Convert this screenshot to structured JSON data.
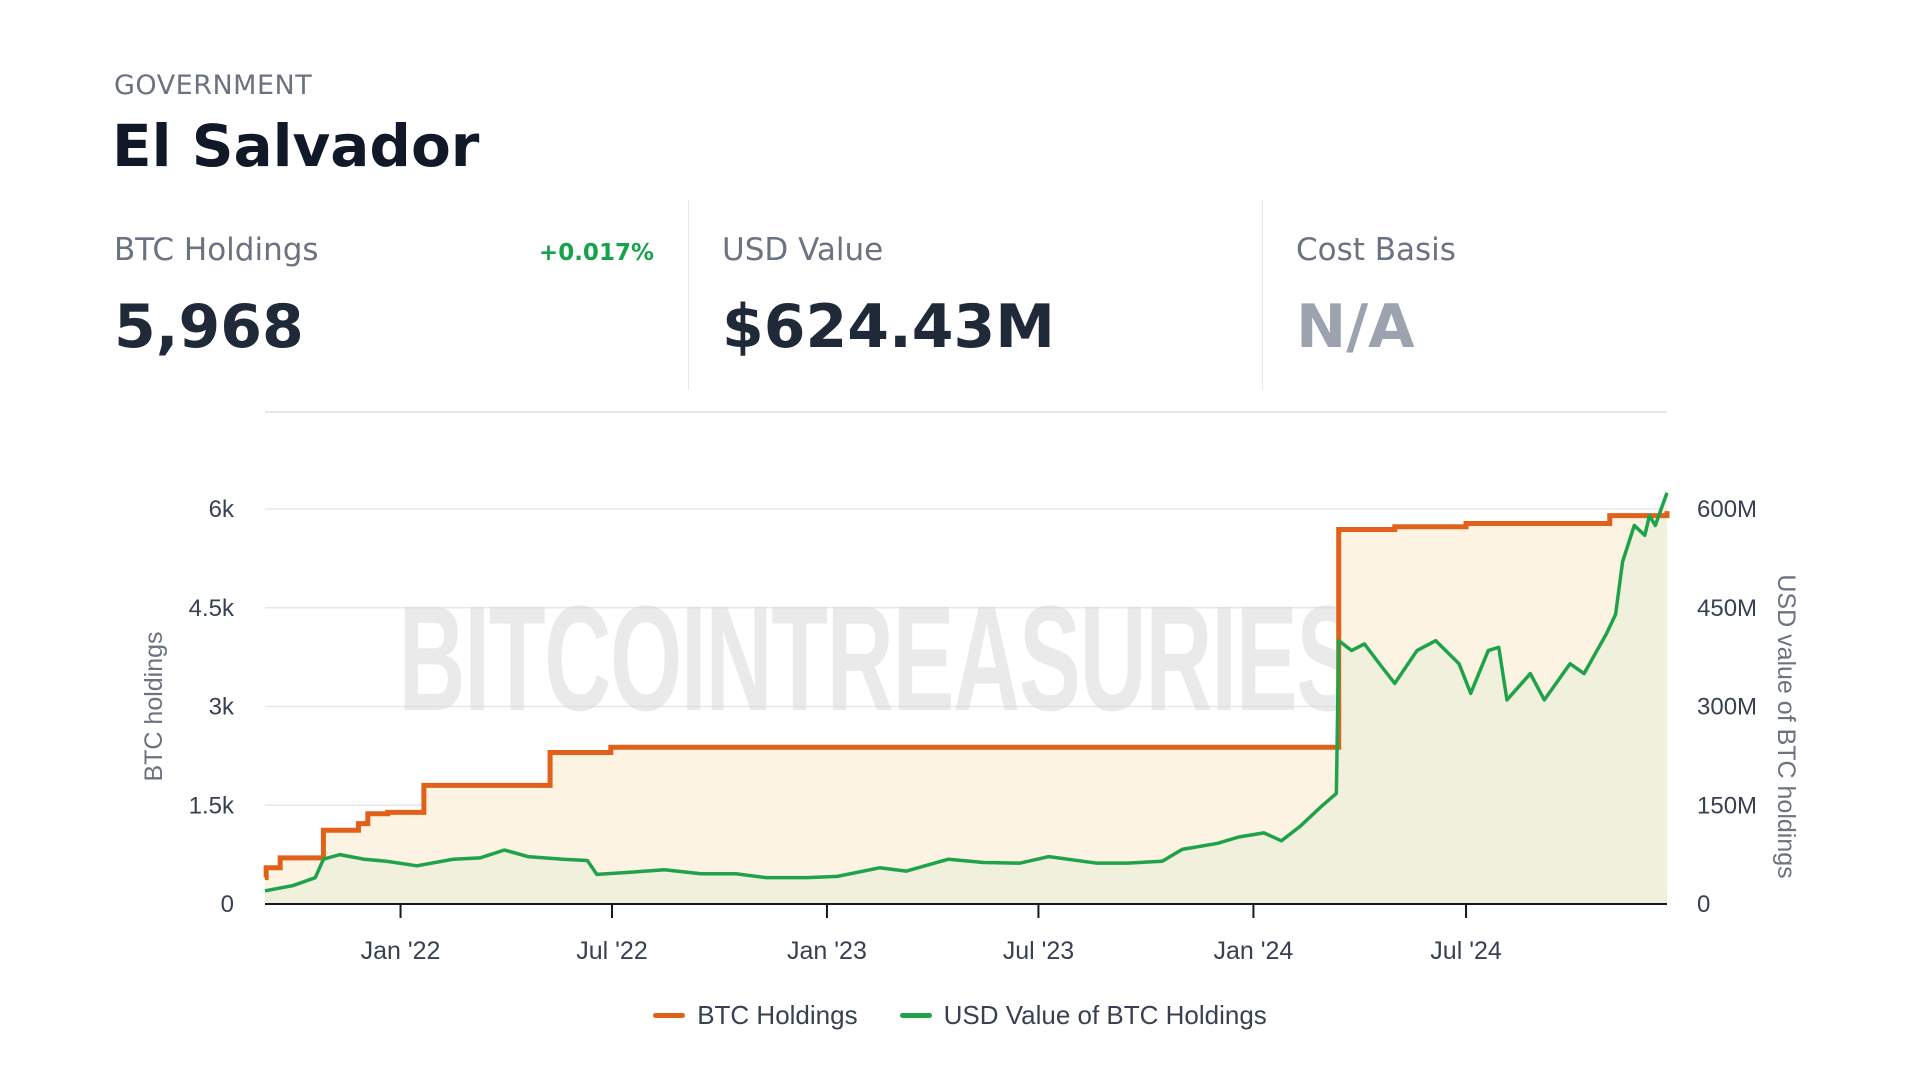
{
  "header": {
    "category": "GOVERNMENT",
    "entity": "El Salvador"
  },
  "stats": {
    "btc_holdings": {
      "label": "BTC Holdings",
      "value": "5,968",
      "change": "+0.017%"
    },
    "usd_value": {
      "label": "USD Value",
      "value": "$624.43M"
    },
    "cost_basis": {
      "label": "Cost Basis",
      "value": "N/A"
    }
  },
  "watermark": "BITCOINTREASURIES.NET",
  "colors": {
    "btc": "#e2611a",
    "usd": "#1fa34a",
    "btc_fill": "#fdf3e2",
    "usd_fill": "#eff0dd",
    "change_positive": "#16a34a"
  },
  "chart_data": {
    "type": "line",
    "x_type": "date",
    "x_range": [
      "2021-09-07",
      "2024-12-20"
    ],
    "x_ticks": [
      {
        "date": "2022-01-01",
        "label": "Jan '22"
      },
      {
        "date": "2022-07-01",
        "label": "Jul '22"
      },
      {
        "date": "2023-01-01",
        "label": "Jan '23"
      },
      {
        "date": "2023-07-01",
        "label": "Jul '23"
      },
      {
        "date": "2024-01-01",
        "label": "Jan '24"
      },
      {
        "date": "2024-07-01",
        "label": "Jul '24"
      }
    ],
    "y_left": {
      "label": "BTC holdings",
      "ylim": [
        0,
        6000
      ],
      "ticks": [
        {
          "value": 0,
          "label": "0"
        },
        {
          "value": 1500,
          "label": "1.5k"
        },
        {
          "value": 3000,
          "label": "3k"
        },
        {
          "value": 4500,
          "label": "4.5k"
        },
        {
          "value": 6000,
          "label": "6k"
        }
      ]
    },
    "y_right": {
      "label": "USD value of BTC holdings",
      "ylim": [
        0,
        600000000
      ],
      "ticks": [
        {
          "value": 0,
          "label": "0"
        },
        {
          "value": 150000000,
          "label": "150M"
        },
        {
          "value": 300000000,
          "label": "300M"
        },
        {
          "value": 450000000,
          "label": "450M"
        },
        {
          "value": 600000000,
          "label": "600M"
        }
      ]
    },
    "grid": true,
    "legend_position": "bottom-center",
    "series": [
      {
        "name": "BTC Holdings",
        "axis": "left",
        "step": true,
        "points": [
          [
            "2021-09-07",
            400
          ],
          [
            "2021-09-08",
            550
          ],
          [
            "2021-09-20",
            700
          ],
          [
            "2021-10-27",
            1120
          ],
          [
            "2021-11-26",
            1220
          ],
          [
            "2021-12-04",
            1370
          ],
          [
            "2021-12-21",
            1391
          ],
          [
            "2022-01-21",
            1801
          ],
          [
            "2022-05-09",
            2301
          ],
          [
            "2022-06-30",
            2381
          ],
          [
            "2022-07-01",
            2381
          ],
          [
            "2024-03-14",
            5689
          ],
          [
            "2024-05-01",
            5730
          ],
          [
            "2024-07-01",
            5780
          ],
          [
            "2024-11-01",
            5900
          ],
          [
            "2024-12-20",
            5968
          ]
        ]
      },
      {
        "name": "USD Value of BTC Holdings",
        "axis": "right",
        "step": false,
        "points": [
          [
            "2021-09-07",
            20000000
          ],
          [
            "2021-10-01",
            28000000
          ],
          [
            "2021-10-20",
            40000000
          ],
          [
            "2021-10-27",
            68000000
          ],
          [
            "2021-11-10",
            75000000
          ],
          [
            "2021-12-01",
            68000000
          ],
          [
            "2021-12-20",
            65000000
          ],
          [
            "2022-01-15",
            58000000
          ],
          [
            "2022-02-15",
            68000000
          ],
          [
            "2022-03-10",
            70000000
          ],
          [
            "2022-03-31",
            82000000
          ],
          [
            "2022-04-20",
            72000000
          ],
          [
            "2022-05-20",
            68000000
          ],
          [
            "2022-06-10",
            66000000
          ],
          [
            "2022-06-18",
            45000000
          ],
          [
            "2022-07-15",
            48000000
          ],
          [
            "2022-08-15",
            52000000
          ],
          [
            "2022-09-15",
            46000000
          ],
          [
            "2022-10-15",
            46000000
          ],
          [
            "2022-11-10",
            40000000
          ],
          [
            "2022-12-15",
            40000000
          ],
          [
            "2023-01-10",
            42000000
          ],
          [
            "2023-02-15",
            55000000
          ],
          [
            "2023-03-10",
            50000000
          ],
          [
            "2023-04-15",
            68000000
          ],
          [
            "2023-05-15",
            63000000
          ],
          [
            "2023-06-15",
            62000000
          ],
          [
            "2023-07-10",
            72000000
          ],
          [
            "2023-08-20",
            62000000
          ],
          [
            "2023-09-15",
            62000000
          ],
          [
            "2023-10-15",
            65000000
          ],
          [
            "2023-11-01",
            83000000
          ],
          [
            "2023-12-01",
            92000000
          ],
          [
            "2023-12-20",
            102000000
          ],
          [
            "2024-01-10",
            108000000
          ],
          [
            "2024-01-25",
            96000000
          ],
          [
            "2024-02-10",
            118000000
          ],
          [
            "2024-02-28",
            148000000
          ],
          [
            "2024-03-12",
            168000000
          ],
          [
            "2024-03-14",
            400000000
          ],
          [
            "2024-03-25",
            385000000
          ],
          [
            "2024-04-05",
            395000000
          ],
          [
            "2024-04-20",
            360000000
          ],
          [
            "2024-05-01",
            335000000
          ],
          [
            "2024-05-20",
            385000000
          ],
          [
            "2024-06-05",
            400000000
          ],
          [
            "2024-06-25",
            365000000
          ],
          [
            "2024-07-05",
            320000000
          ],
          [
            "2024-07-20",
            385000000
          ],
          [
            "2024-07-29",
            390000000
          ],
          [
            "2024-08-05",
            310000000
          ],
          [
            "2024-08-25",
            350000000
          ],
          [
            "2024-09-06",
            310000000
          ],
          [
            "2024-09-28",
            365000000
          ],
          [
            "2024-10-10",
            350000000
          ],
          [
            "2024-10-29",
            410000000
          ],
          [
            "2024-11-06",
            440000000
          ],
          [
            "2024-11-12",
            520000000
          ],
          [
            "2024-11-22",
            575000000
          ],
          [
            "2024-12-01",
            560000000
          ],
          [
            "2024-12-05",
            590000000
          ],
          [
            "2024-12-10",
            575000000
          ],
          [
            "2024-12-17",
            610000000
          ],
          [
            "2024-12-20",
            624430000
          ]
        ]
      }
    ]
  }
}
